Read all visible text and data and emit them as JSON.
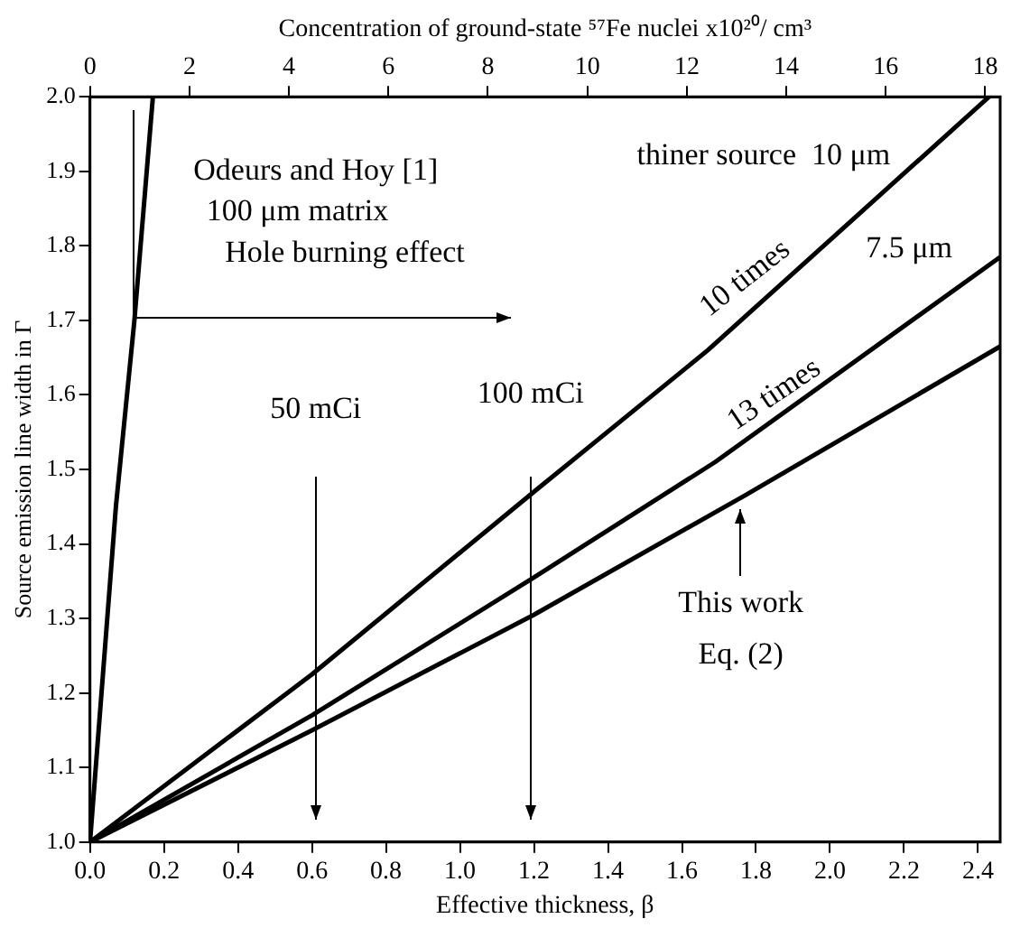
{
  "chart_data": {
    "type": "line",
    "xlabel": "Effective thickness, β",
    "ylabel": "Source emission line width in Γ",
    "x2label": "Concentration of ground-state ⁵⁷Fe nuclei x10²⁰/ cm³",
    "series": [
      {
        "color": "#000000",
        "x": [
          0,
          0.07,
          0.12,
          0.17
        ],
        "values": [
          1.0,
          1.45,
          1.7,
          2.0
        ]
      },
      {
        "color": "#000000",
        "x": [
          0,
          0.6,
          1.2,
          1.67,
          2.43
        ],
        "values": [
          1.0,
          1.225,
          1.47,
          1.66,
          2.0
        ]
      },
      {
        "color": "#000000",
        "x": [
          0,
          0.6,
          1.2,
          1.69,
          2.46
        ],
        "values": [
          1.0,
          1.17,
          1.355,
          1.51,
          1.785
        ]
      },
      {
        "color": "#000000",
        "x": [
          0,
          0.6,
          1.2,
          1.77,
          2.46
        ],
        "values": [
          1.0,
          1.15,
          1.305,
          1.465,
          1.665
        ]
      }
    ],
    "xlim": [
      0,
      2.46
    ],
    "xticks": [
      {
        "value": 0,
        "label": "0.0"
      },
      0.2,
      0.4,
      0.6,
      0.8,
      {
        "value": 1,
        "label": "1.0"
      },
      1.2,
      1.4,
      1.6,
      1.8,
      {
        "value": 2,
        "label": "2.0"
      },
      2.2,
      2.4
    ],
    "ylim": [
      1,
      2
    ],
    "yticks": [
      {
        "value": 1,
        "label": "1.0"
      },
      1.1,
      1.2,
      1.3,
      1.4,
      1.5,
      1.6,
      1.7,
      1.8,
      1.9,
      {
        "value": 2,
        "label": "2.0"
      }
    ],
    "x2lim": [
      0,
      18.3
    ],
    "x2ticks": [
      0,
      2,
      4,
      6,
      8,
      10,
      12,
      14,
      16,
      18
    ],
    "marker": "none",
    "line_style": "solid",
    "grid": false,
    "legend": false,
    "annotations": [
      "Odeurs and Hoy [1]",
      "100 μm matrix",
      "Hole burning effect",
      "50 mCi",
      "100 mCi",
      "thiner source  10 μm",
      "10 times",
      "13 times",
      "7.5 μm",
      "This work",
      "Eq. (2)"
    ]
  }
}
